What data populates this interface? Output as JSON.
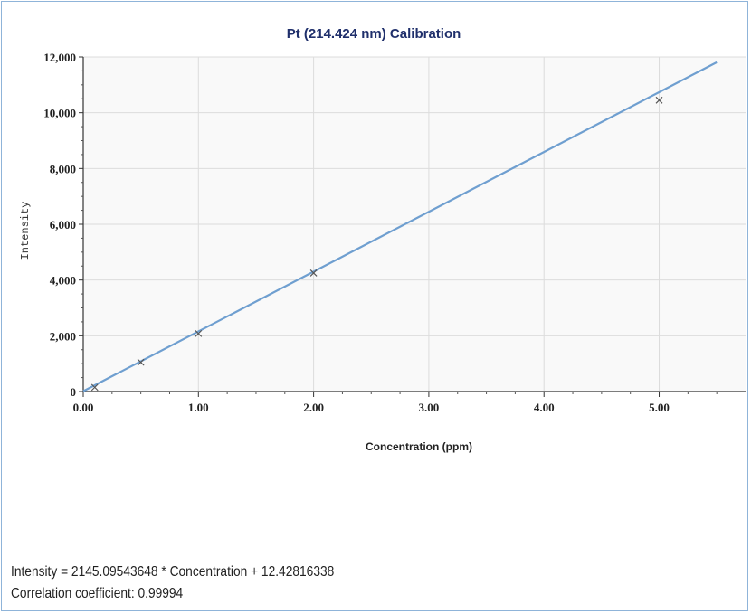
{
  "chart_data": {
    "type": "scatter",
    "title": "Pt (214.424 nm) Calibration",
    "xlabel": "Concentration (ppm)",
    "ylabel": "Intensity",
    "xlim": [
      0,
      5.75
    ],
    "ylim": [
      0,
      12000
    ],
    "x_ticks": [
      "0.00",
      "1.00",
      "2.00",
      "3.00",
      "4.00",
      "5.00"
    ],
    "x_tick_values": [
      0,
      1,
      2,
      3,
      4,
      5
    ],
    "y_ticks": [
      "0",
      "2,000",
      "4,000",
      "6,000",
      "8,000",
      "10,000",
      "12,000"
    ],
    "y_tick_values": [
      0,
      2000,
      4000,
      6000,
      8000,
      10000,
      12000
    ],
    "grid": true,
    "series": [
      {
        "points": [
          {
            "x": 0.1,
            "y": 150
          },
          {
            "x": 0.5,
            "y": 1050
          },
          {
            "x": 1.0,
            "y": 2080
          },
          {
            "x": 2.0,
            "y": 4250
          },
          {
            "x": 5.0,
            "y": 10450
          }
        ],
        "marker": "x",
        "color": "#555555"
      }
    ],
    "fit_line": {
      "slope": 2145.09543648,
      "intercept": 12.42816338,
      "x_range": [
        0,
        5.5
      ],
      "color": "#6f9fd0"
    }
  },
  "equation_text": "Intensity = 2145.09543648 * Concentration + 12.42816338",
  "correlation_text": "Correlation coefficient: 0.99994"
}
